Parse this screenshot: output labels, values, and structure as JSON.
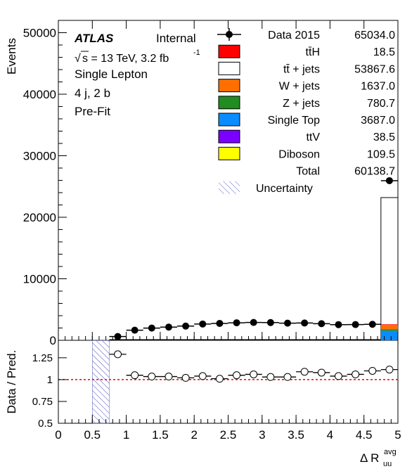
{
  "chart_data": {
    "type": "bar",
    "labels": {
      "experiment": "ATLAS",
      "status": "Internal",
      "energy_prefix": "s = 13 TeV, 3.2 fb",
      "energy_sup": "-1",
      "channel": "Single Lepton",
      "region": "4 j, 2 b",
      "stage": "Pre-Fit"
    },
    "legend": [
      {
        "name": "Data 2015",
        "value": "65034.0",
        "kind": "data",
        "color": "#000000"
      },
      {
        "name": "tt̄H",
        "value": "18.5",
        "kind": "box",
        "color": "#ff0000"
      },
      {
        "name": "tt̄ + jets",
        "value": "53867.6",
        "kind": "box",
        "color": "#ffffff"
      },
      {
        "name": "W + jets",
        "value": "1637.0",
        "kind": "box",
        "color": "#ff6f00"
      },
      {
        "name": "Z + jets",
        "value": "780.7",
        "kind": "box",
        "color": "#228b22"
      },
      {
        "name": "Single Top",
        "value": "3687.0",
        "kind": "box",
        "color": "#0a8cff"
      },
      {
        "name": "ttV",
        "value": "38.5",
        "kind": "box",
        "color": "#7a00ff"
      },
      {
        "name": "Diboson",
        "value": "109.5",
        "kind": "box",
        "color": "#ffff00"
      },
      {
        "name": "Total",
        "value": "60138.7",
        "kind": "none",
        "color": ""
      },
      {
        "name": "Uncertainty",
        "value": "",
        "kind": "hatch",
        "color": "#5555bb"
      }
    ],
    "main": {
      "ylabel": "Events",
      "ylim": [
        0,
        52000
      ],
      "yticks": [
        0,
        10000,
        20000,
        30000,
        40000,
        50000
      ],
      "xlim": [
        0,
        5
      ],
      "bin_width": 0.25,
      "data_x": [
        0.875,
        1.125,
        1.375,
        1.625,
        1.875,
        2.125,
        2.375,
        2.625,
        2.875,
        3.125,
        3.375,
        3.625,
        3.875,
        4.125,
        4.375,
        4.625,
        4.875
      ],
      "data_y": [
        620,
        1640,
        1990,
        2150,
        2310,
        2650,
        2750,
        2850,
        2900,
        2880,
        2790,
        2810,
        2700,
        2550,
        2560,
        2600,
        25950
      ],
      "mc_last_bin": {
        "bin": [
          4.75,
          5.0
        ],
        "total": 23200,
        "single_top": 1550,
        "z_jets": 250,
        "w_jets": 700,
        "other": 100
      }
    },
    "ratio": {
      "ylabel": "Data / Pred.",
      "xlabel": "Δ R",
      "xlabel_sub": "uu",
      "xlabel_sup": "avg",
      "ylim": [
        0.5,
        1.45
      ],
      "yticks": [
        0.5,
        0.75,
        1,
        1.25
      ],
      "ytick_labels": [
        "0.5",
        "0.75",
        "1",
        "1.25"
      ],
      "xticks": [
        0,
        0.5,
        1,
        1.5,
        2,
        2.5,
        3,
        3.5,
        4,
        4.5,
        5
      ],
      "xtick_labels": [
        "0",
        "0.5",
        "1",
        "1.5",
        "2",
        "2.5",
        "3",
        "3.5",
        "4",
        "4.5",
        "5"
      ],
      "reference_line": 1,
      "hatch_band": [
        0.5,
        0.75
      ],
      "x": [
        0.875,
        1.125,
        1.375,
        1.625,
        1.875,
        2.125,
        2.375,
        2.625,
        2.875,
        3.125,
        3.375,
        3.625,
        3.875,
        4.125,
        4.375,
        4.625,
        4.875
      ],
      "y": [
        1.29,
        1.05,
        1.035,
        1.035,
        1.02,
        1.04,
        1.01,
        1.05,
        1.06,
        1.03,
        1.03,
        1.09,
        1.08,
        1.04,
        1.06,
        1.1,
        1.115
      ]
    }
  }
}
